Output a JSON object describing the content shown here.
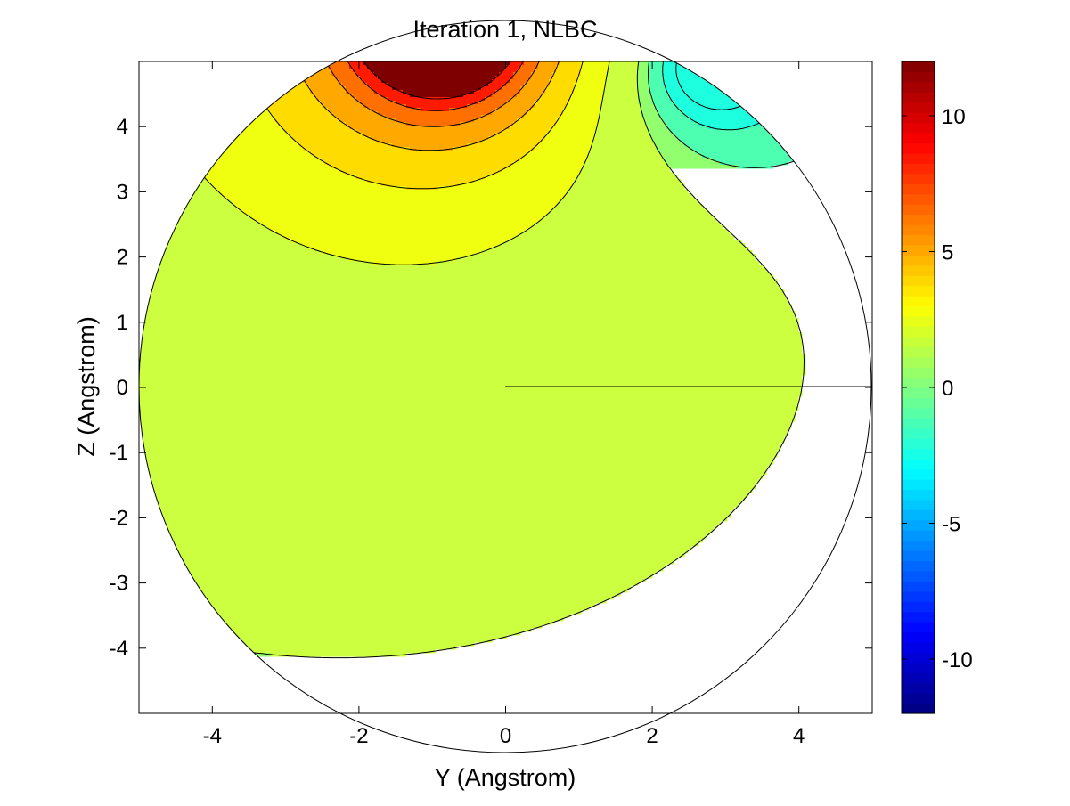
{
  "chart_data": {
    "type": "heatmap",
    "subtype": "filled-contour",
    "title": "Iteration 1, NLBC",
    "xlabel": "Y (Angstrom)",
    "ylabel": "Z (Angstrom)",
    "xlim": [
      -5,
      5
    ],
    "ylim": [
      -5,
      5
    ],
    "xticks": [
      -4,
      -2,
      0,
      2,
      4
    ],
    "yticks": [
      -4,
      -3,
      -2,
      -1,
      0,
      1,
      2,
      3,
      4
    ],
    "xtick_labels": [
      "-4",
      "-2",
      "0",
      "2",
      "4"
    ],
    "ytick_labels": [
      "-4",
      "-3",
      "-2",
      "-1",
      "0",
      "1",
      "2",
      "3",
      "4"
    ],
    "domain": "disk of radius 5 centered at origin",
    "colormap": "jet",
    "colorbar": {
      "range": [
        -12,
        12
      ],
      "ticks": [
        -10,
        -5,
        0,
        5,
        10
      ],
      "tick_labels": [
        "-10",
        "-5",
        "0",
        "5",
        "10"
      ],
      "placement": "right"
    },
    "contour_levels": [
      -3,
      -1,
      1,
      3,
      4.5,
      6,
      7.5,
      9,
      10.5,
      12
    ],
    "regions": [
      {
        "level_range": [
          -3,
          -1
        ],
        "color": "#1EFFE0",
        "location": "upper right near rim"
      },
      {
        "level_range": [
          -1,
          1
        ],
        "color": "#4DFFB0",
        "location": "right wedge above Z=0"
      },
      {
        "level_range": [
          0,
          1
        ],
        "color": "#91FF6E",
        "location": "lower half and center"
      },
      {
        "level_range": [
          1,
          3
        ],
        "color": "#CCFF40",
        "location": "left-center band"
      },
      {
        "level_range": [
          3,
          4.5
        ],
        "color": "#F0FF0F",
        "location": "left, Z 0.4 to 2"
      },
      {
        "level_range": [
          4.5,
          6
        ],
        "color": "#FFDC00",
        "location": "upper left"
      },
      {
        "level_range": [
          6,
          7.5
        ],
        "color": "#FFA800",
        "location": "upper left"
      },
      {
        "level_range": [
          7.5,
          9
        ],
        "color": "#FF7000",
        "location": "upper left"
      },
      {
        "level_range": [
          9,
          10.5
        ],
        "color": "#FF1A00",
        "location": "top left"
      },
      {
        "level_range": [
          10.5,
          12
        ],
        "color": "#7F0000",
        "location": "top near Y=-1"
      }
    ],
    "annotations": [
      "horizontal line from Y=0 to Y=5 at Z=0"
    ]
  }
}
